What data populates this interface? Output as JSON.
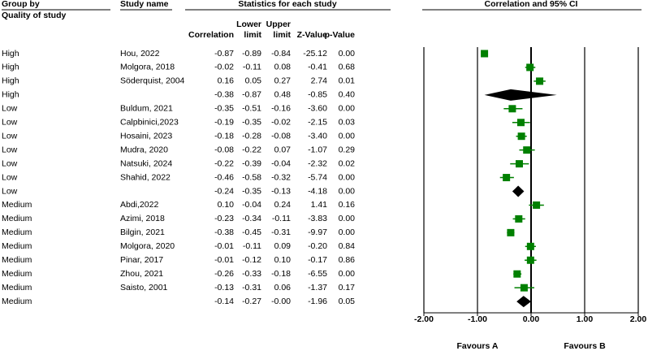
{
  "chart_data": {
    "type": "forest",
    "group_header": "Group by",
    "group_subheader": "Quality of study",
    "study_header": "Study name",
    "stats_header": "Statistics for each study",
    "title": "Correlation and 95% CI",
    "groups": [
      "High",
      "High",
      "High",
      "High",
      "Low",
      "Low",
      "Low",
      "Low",
      "Low",
      "Low",
      "Low",
      "Medium",
      "Medium",
      "Medium",
      "Medium",
      "Medium",
      "Medium",
      "Medium",
      "Medium"
    ],
    "categories": [
      "Hou, 2022",
      "Molgora, 2018",
      "Söderquist, 2004",
      null,
      "Buldum, 2021",
      "Calpbinici,2023",
      "Hosaini, 2023",
      "Mudra, 2020",
      "Natsuki, 2024",
      "Shahid, 2022",
      null,
      "Abdi,2022",
      "Azimi, 2018",
      "Bilgin, 2021",
      "Molgora, 2020",
      "Pinar, 2017",
      "Zhou, 2021",
      "Saisto, 2001",
      null
    ],
    "summary": [
      false,
      false,
      false,
      true,
      false,
      false,
      false,
      false,
      false,
      false,
      true,
      false,
      false,
      false,
      false,
      false,
      false,
      false,
      true
    ],
    "series": [
      {
        "name": "Correlation",
        "values": [
          -0.87,
          -0.02,
          0.16,
          -0.38,
          -0.35,
          -0.19,
          -0.18,
          -0.08,
          -0.22,
          -0.46,
          -0.24,
          0.1,
          -0.23,
          -0.38,
          -0.01,
          -0.01,
          -0.26,
          -0.13,
          -0.14
        ],
        "value_labels": [
          "-0.87",
          "-0.02",
          "0.16",
          "-0.38",
          "-0.35",
          "-0.19",
          "-0.18",
          "-0.08",
          "-0.22",
          "-0.46",
          "-0.24",
          "0.10",
          "-0.23",
          "-0.38",
          "-0.01",
          "-0.01",
          "-0.26",
          "-0.13",
          "-0.14"
        ]
      },
      {
        "name": "Lower limit",
        "values": [
          -0.89,
          -0.11,
          0.05,
          -0.87,
          -0.51,
          -0.35,
          -0.28,
          -0.22,
          -0.39,
          -0.58,
          -0.35,
          -0.04,
          -0.34,
          -0.45,
          -0.11,
          -0.12,
          -0.33,
          -0.31,
          -0.27
        ],
        "value_labels": [
          "-0.89",
          "-0.11",
          "0.05",
          "-0.87",
          "-0.51",
          "-0.35",
          "-0.28",
          "-0.22",
          "-0.39",
          "-0.58",
          "-0.35",
          "-0.04",
          "-0.34",
          "-0.45",
          "-0.11",
          "-0.12",
          "-0.33",
          "-0.31",
          "-0.27"
        ]
      },
      {
        "name": "Upper limit",
        "values": [
          -0.84,
          0.08,
          0.27,
          0.48,
          -0.16,
          -0.02,
          -0.08,
          0.07,
          -0.04,
          -0.32,
          -0.13,
          0.24,
          -0.11,
          -0.31,
          0.09,
          0.1,
          -0.18,
          0.06,
          -0.0
        ],
        "value_labels": [
          "-0.84",
          "0.08",
          "0.27",
          "0.48",
          "-0.16",
          "-0.02",
          "-0.08",
          "0.07",
          "-0.04",
          "-0.32",
          "-0.13",
          "0.24",
          "-0.11",
          "-0.31",
          "0.09",
          "0.10",
          "-0.18",
          "0.06",
          "-0.00"
        ]
      },
      {
        "name": "Z-Value",
        "values": [
          -25.12,
          -0.41,
          2.74,
          -0.85,
          -3.6,
          -2.15,
          -3.4,
          -1.07,
          -2.32,
          -5.74,
          -4.18,
          1.41,
          -3.83,
          -9.97,
          -0.2,
          -0.17,
          -6.55,
          -1.37,
          -1.96
        ],
        "value_labels": [
          "-25.12",
          "-0.41",
          "2.74",
          "-0.85",
          "-3.60",
          "-2.15",
          "-3.40",
          "-1.07",
          "-2.32",
          "-5.74",
          "-4.18",
          "1.41",
          "-3.83",
          "-9.97",
          "-0.20",
          "-0.17",
          "-6.55",
          "-1.37",
          "-1.96"
        ]
      },
      {
        "name": "p-Value",
        "values": [
          0.0,
          0.68,
          0.01,
          0.4,
          0.0,
          0.03,
          0.0,
          0.29,
          0.02,
          0.0,
          0.0,
          0.16,
          0.0,
          0.0,
          0.84,
          0.86,
          0.0,
          0.17,
          0.05
        ],
        "value_labels": [
          "0.00",
          "0.68",
          "0.01",
          "0.40",
          "0.00",
          "0.03",
          "0.00",
          "0.29",
          "0.02",
          "0.00",
          "0.00",
          "0.16",
          "0.00",
          "0.00",
          "0.84",
          "0.86",
          "0.00",
          "0.17",
          "0.05"
        ]
      }
    ],
    "study_color": "#008000",
    "summary_color": "#000000",
    "xlim": [
      -2,
      2
    ],
    "xticks": [
      {
        "value": -2,
        "label": "-2.00"
      },
      {
        "value": -1,
        "label": "-1.00"
      },
      {
        "value": 0,
        "label": "0.00"
      },
      {
        "value": 1,
        "label": "1.00"
      },
      {
        "value": 2,
        "label": "2.00"
      }
    ],
    "grid": true,
    "left_label": "Favours A",
    "right_label": "Favours B"
  }
}
